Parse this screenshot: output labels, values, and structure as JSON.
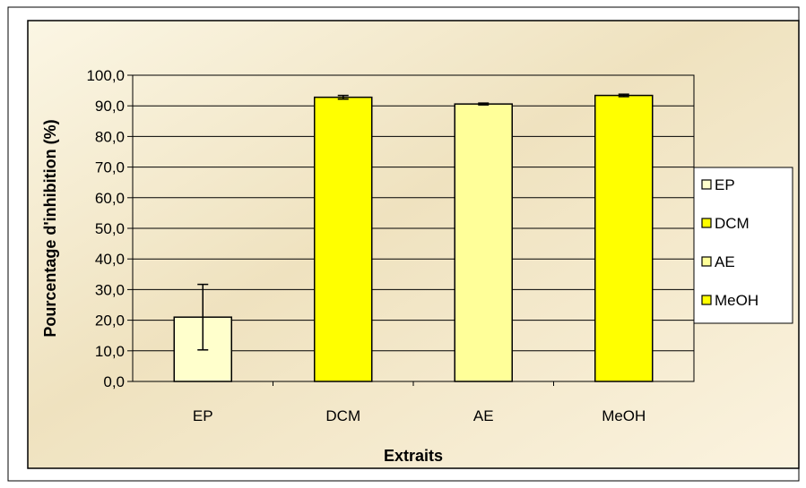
{
  "chart_data": {
    "type": "bar",
    "categories": [
      "EP",
      "DCM",
      "AE",
      "MeOH"
    ],
    "values": [
      21.0,
      92.8,
      90.6,
      93.4
    ],
    "errors": [
      10.7,
      0.6,
      0.3,
      0.4
    ],
    "colors": [
      "#ffffcc",
      "#ffff00",
      "#ffff99",
      "#ffff00"
    ],
    "xlabel": "Extraits",
    "ylabel": "Pourcentage d'inhibition (%)",
    "ylim": [
      0,
      100
    ],
    "yticks": [
      "0,0",
      "10,0",
      "20,0",
      "30,0",
      "40,0",
      "50,0",
      "60,0",
      "70,0",
      "80,0",
      "90,0",
      "100,0"
    ],
    "grid": true,
    "legend": {
      "position": "right",
      "entries": [
        {
          "label": "EP",
          "color": "#ffffcc"
        },
        {
          "label": "DCM",
          "color": "#ffff00"
        },
        {
          "label": "AE",
          "color": "#ffff99"
        },
        {
          "label": "MeOH",
          "color": "#ffff00"
        }
      ]
    }
  }
}
